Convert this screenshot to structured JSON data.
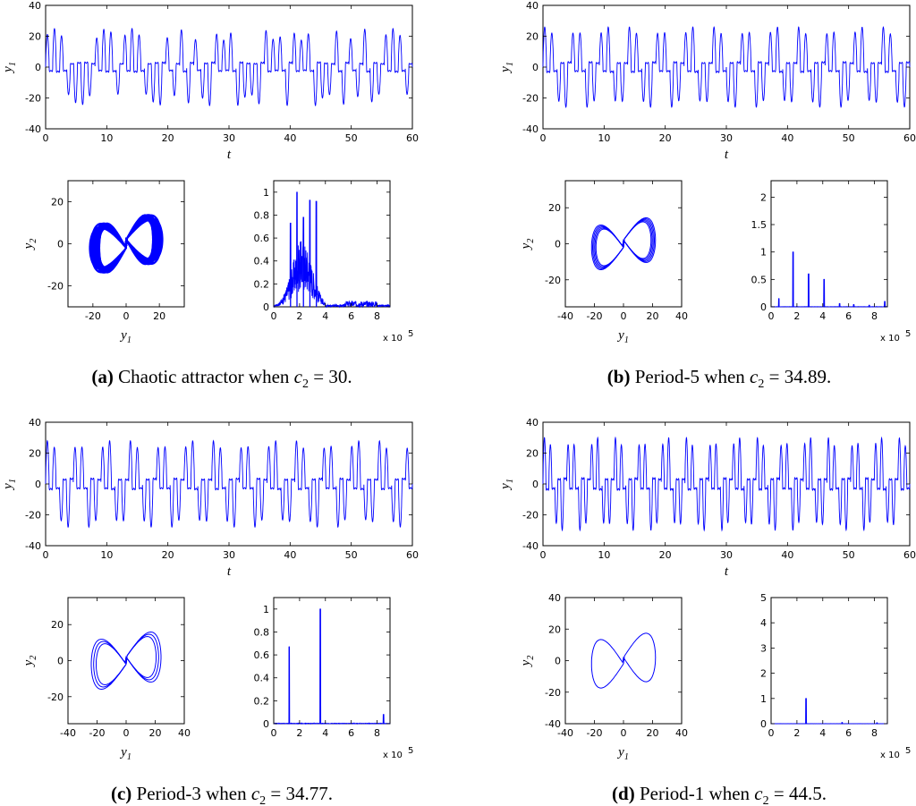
{
  "chart_data": [
    {
      "id": "a",
      "caption_tag": "(a)",
      "caption_body": "Chaotic attractor when ",
      "caption_value": "30.",
      "regime": "chaotic",
      "time_series": {
        "type": "line",
        "xlabel": "t",
        "ylabel": "y1",
        "xlim": [
          0,
          60
        ],
        "ylim": [
          -40,
          40
        ],
        "xticks": [
          0,
          10,
          20,
          30,
          40,
          50,
          60
        ],
        "yticks": [
          -40,
          -20,
          0,
          20,
          40
        ],
        "amplitude": 25,
        "oscillations": 52,
        "color": "#0000ff"
      },
      "phase_portrait": {
        "type": "line",
        "xlabel": "y1",
        "ylabel": "y2",
        "xlim": [
          -35,
          35
        ],
        "ylim": [
          -30,
          30
        ],
        "xticks": [
          -20,
          0,
          20
        ],
        "yticks": [
          -20,
          0,
          20
        ],
        "y1_amplitude": 22,
        "y2_amplitude": 24,
        "color": "#0000ff"
      },
      "spectrum": {
        "type": "line",
        "xlim": [
          0,
          9
        ],
        "ylim": [
          0,
          1.1
        ],
        "xticks": [
          0,
          2,
          4,
          6,
          8
        ],
        "yticks": [
          0,
          0.2,
          0.4,
          0.6,
          0.8,
          1
        ],
        "ytick_labels": [
          "0",
          "0.2",
          "0.4",
          "0.6",
          "0.8",
          "1"
        ],
        "x_scale_label": "x 10",
        "x_scale_exp": "5",
        "peaks": [
          {
            "x": 1.8,
            "y": 1.0
          },
          {
            "x": 2.8,
            "y": 0.93
          },
          {
            "x": 3.3,
            "y": 0.92
          },
          {
            "x": 1.3,
            "y": 0.73
          },
          {
            "x": 2.3,
            "y": 0.78
          }
        ],
        "color": "#0000ff"
      }
    },
    {
      "id": "b",
      "caption_tag": "(b)",
      "caption_body": "Period-5 when ",
      "caption_value": "34.89.",
      "regime": "periodic",
      "time_series": {
        "type": "line",
        "xlabel": "t",
        "ylabel": "y1",
        "xlim": [
          0,
          60
        ],
        "ylim": [
          -40,
          40
        ],
        "xticks": [
          0,
          10,
          20,
          30,
          40,
          50,
          60
        ],
        "yticks": [
          -40,
          -20,
          0,
          20,
          40
        ],
        "amplitude": 26,
        "oscillations": 52,
        "color": "#0000ff"
      },
      "phase_portrait": {
        "type": "line",
        "xlabel": "y1",
        "ylabel": "y2",
        "xlim": [
          -40,
          40
        ],
        "ylim": [
          -35,
          35
        ],
        "xticks": [
          -40,
          -20,
          0,
          20,
          40
        ],
        "yticks": [
          -20,
          0,
          20
        ],
        "y1_amplitude": 22,
        "y2_amplitude": 25,
        "loops": 5,
        "color": "#0000ff"
      },
      "spectrum": {
        "type": "line",
        "xlim": [
          0,
          9
        ],
        "ylim": [
          0,
          2.3
        ],
        "xticks": [
          0,
          2,
          4,
          6,
          8
        ],
        "yticks": [
          0,
          0.5,
          1,
          1.5,
          2
        ],
        "ytick_labels": [
          "0",
          "0.5",
          "1",
          "1.5",
          "2"
        ],
        "x_scale_label": "x 10",
        "x_scale_exp": "5",
        "peaks": [
          {
            "x": 0.6,
            "y": 0.15
          },
          {
            "x": 1.7,
            "y": 1.0
          },
          {
            "x": 2.9,
            "y": 0.6
          },
          {
            "x": 4.1,
            "y": 0.5
          },
          {
            "x": 5.3,
            "y": 0.06
          },
          {
            "x": 6.4,
            "y": 0.04
          },
          {
            "x": 7.6,
            "y": 0.03
          },
          {
            "x": 8.8,
            "y": 0.1
          }
        ],
        "color": "#0000ff"
      }
    },
    {
      "id": "c",
      "caption_tag": "(c)",
      "caption_body": "Period-3 when ",
      "caption_value": "34.77.",
      "regime": "periodic",
      "time_series": {
        "type": "line",
        "xlabel": "t",
        "ylabel": "y1",
        "xlim": [
          0,
          60
        ],
        "ylim": [
          -40,
          40
        ],
        "xticks": [
          0,
          10,
          20,
          30,
          40,
          50,
          60
        ],
        "yticks": [
          -40,
          -20,
          0,
          20,
          40
        ],
        "amplitude": 28,
        "oscillations": 53,
        "color": "#0000ff"
      },
      "phase_portrait": {
        "type": "line",
        "xlabel": "y1",
        "ylabel": "y2",
        "xlim": [
          -40,
          40
        ],
        "ylim": [
          -35,
          35
        ],
        "xticks": [
          -40,
          -20,
          0,
          20,
          40
        ],
        "yticks": [
          -20,
          0,
          20
        ],
        "y1_amplitude": 24,
        "y2_amplitude": 28,
        "loops": 3,
        "color": "#0000ff"
      },
      "spectrum": {
        "type": "line",
        "xlim": [
          0,
          9
        ],
        "ylim": [
          0,
          1.1
        ],
        "xticks": [
          0,
          2,
          4,
          6,
          8
        ],
        "yticks": [
          0,
          0.2,
          0.4,
          0.6,
          0.8,
          1
        ],
        "ytick_labels": [
          "0",
          "0.2",
          "0.4",
          "0.6",
          "0.8",
          "1"
        ],
        "x_scale_label": "x 10",
        "x_scale_exp": "5",
        "peaks": [
          {
            "x": 1.2,
            "y": 0.67
          },
          {
            "x": 3.6,
            "y": 1.0
          },
          {
            "x": 8.5,
            "y": 0.08
          }
        ],
        "color": "#0000ff"
      }
    },
    {
      "id": "d",
      "caption_tag": "(d)",
      "caption_body": "Period-1 when ",
      "caption_value": "44.5.",
      "regime": "periodic",
      "time_series": {
        "type": "line",
        "xlabel": "t",
        "ylabel": "y1",
        "xlim": [
          0,
          60
        ],
        "ylim": [
          -40,
          40
        ],
        "xticks": [
          0,
          10,
          20,
          30,
          40,
          50,
          60
        ],
        "yticks": [
          -40,
          -20,
          0,
          20,
          40
        ],
        "amplitude": 30,
        "oscillations": 62,
        "color": "#0000ff"
      },
      "phase_portrait": {
        "type": "line",
        "xlabel": "y1",
        "ylabel": "y2",
        "xlim": [
          -40,
          40
        ],
        "ylim": [
          -40,
          40
        ],
        "xticks": [
          -40,
          -20,
          0,
          20,
          40
        ],
        "yticks": [
          -40,
          -20,
          0,
          20,
          40
        ],
        "y1_amplitude": 22,
        "y2_amplitude": 31,
        "loops": 1,
        "color": "#0000ff"
      },
      "spectrum": {
        "type": "line",
        "xlim": [
          0,
          9
        ],
        "ylim": [
          0,
          5
        ],
        "xticks": [
          0,
          2,
          4,
          6,
          8
        ],
        "yticks": [
          0,
          1,
          2,
          3,
          4,
          5
        ],
        "ytick_labels": [
          "0",
          "1",
          "2",
          "3",
          "4",
          "5"
        ],
        "x_scale_label": "x 10",
        "x_scale_exp": "5",
        "peaks": [
          {
            "x": 2.7,
            "y": 1.0
          },
          {
            "x": 5.5,
            "y": 0.05
          },
          {
            "x": 8.2,
            "y": 0.04
          }
        ],
        "color": "#0000ff"
      }
    }
  ],
  "caption_param": "c",
  "caption_param_sub": "2",
  "caption_equals": " = "
}
